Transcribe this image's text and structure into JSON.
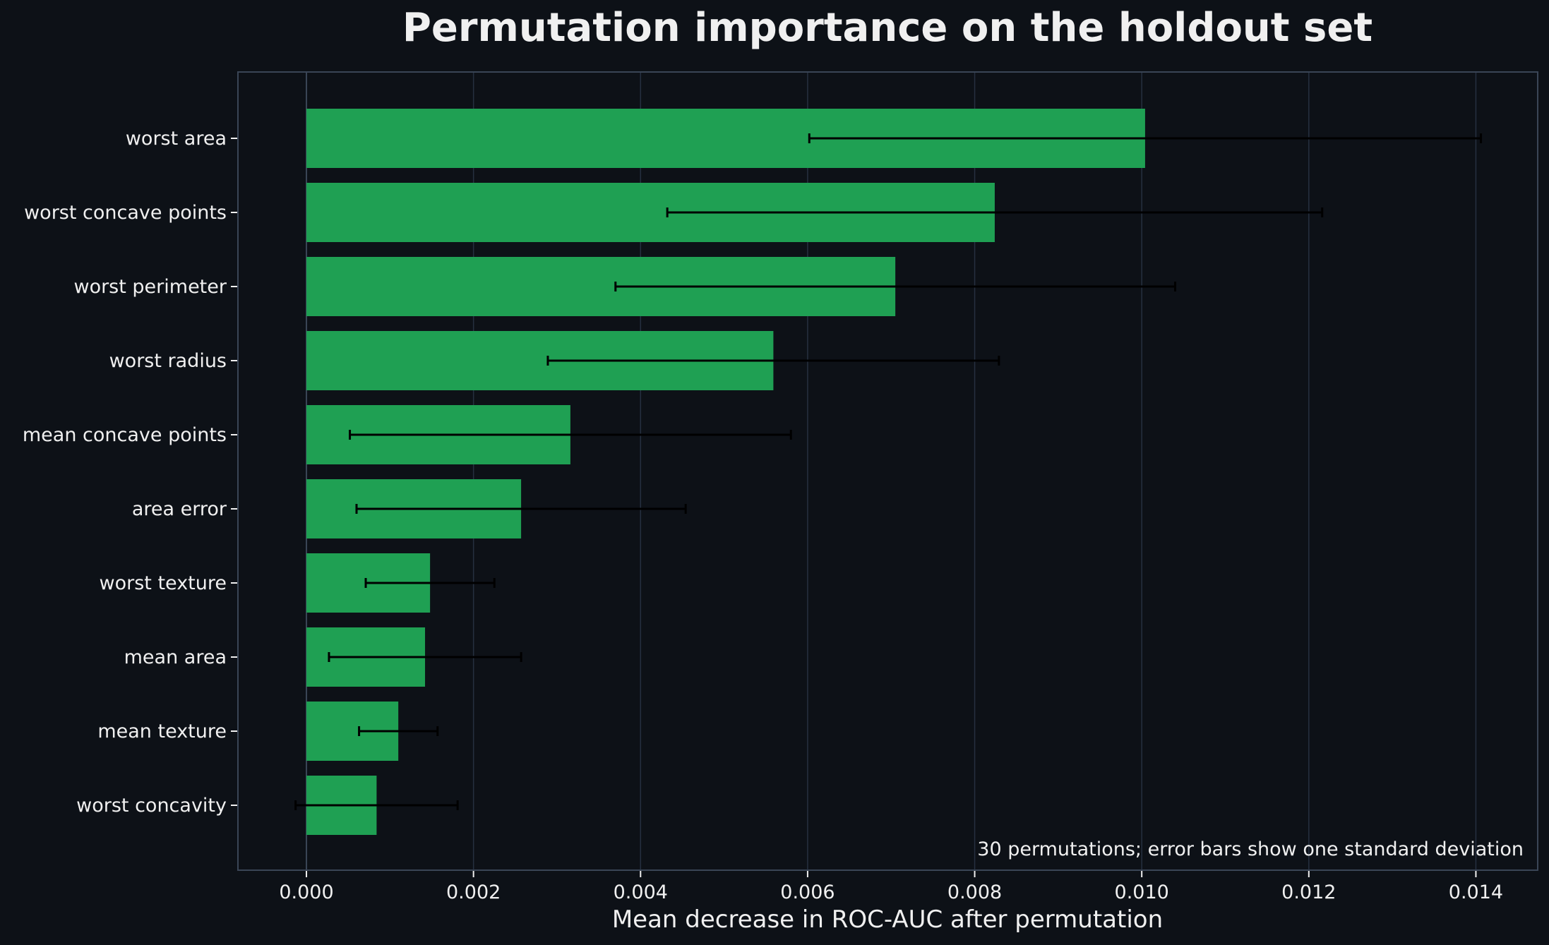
{
  "chart_data": {
    "type": "bar",
    "orientation": "horizontal",
    "title": "Permutation importance on the holdout set",
    "xlabel": "Mean decrease in ROC-AUC after permutation",
    "ylabel": "",
    "annotation": "30 permutations; error bars show one standard deviation",
    "xlim": [
      -0.00082,
      0.01474
    ],
    "xticks": [
      "0.000",
      "0.002",
      "0.004",
      "0.006",
      "0.008",
      "0.010",
      "0.012",
      "0.014"
    ],
    "categories": [
      "worst area",
      "worst concave points",
      "worst perimeter",
      "worst radius",
      "mean concave points",
      "area error",
      "worst texture",
      "mean area",
      "mean texture",
      "worst concavity"
    ],
    "values": [
      0.01004,
      0.00824,
      0.00705,
      0.00559,
      0.00316,
      0.00257,
      0.00148,
      0.00142,
      0.0011,
      0.00084
    ],
    "errors": [
      0.00402,
      0.00392,
      0.00335,
      0.0027,
      0.00264,
      0.00197,
      0.00077,
      0.00115,
      0.00047,
      0.00097
    ],
    "grid": "x",
    "colors": {
      "background": "#0d1117",
      "bar": "#1fa053",
      "errorbar": "#000000",
      "grid": "#263040",
      "spine": "#3a4556",
      "text": "#f0f0f0"
    }
  }
}
